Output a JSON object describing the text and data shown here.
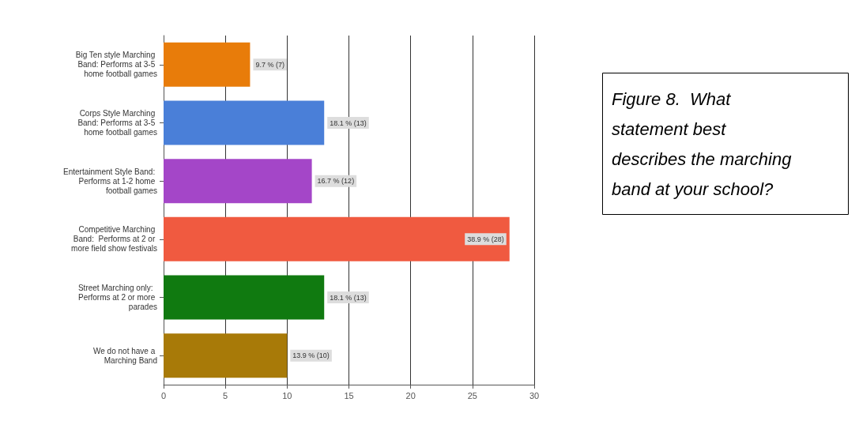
{
  "chart_data": {
    "type": "bar",
    "orientation": "horizontal",
    "title": "Figure 8.  What statement best describes the marching band at your school?",
    "categories": [
      "Big Ten style Marching Band: Performs at 3-5 home football games",
      "Corps Style Marching Band: Performs at 3-5 home football games",
      "Entertainment Style Band: Performs at 1-2 home football games",
      "Competitive Marching Band:  Performs at 2 or more field show festivals",
      "Street Marching only:  Performs at 2 or more parades",
      "We do not have a Marching Band"
    ],
    "values": [
      7,
      13,
      12,
      28,
      13,
      10
    ],
    "colors": [
      "#e87c0a",
      "#4a7fd8",
      "#a446c8",
      "#f05a40",
      "#107a10",
      "#a87a08"
    ],
    "value_labels": [
      "9.7 % (7)",
      "18.1 % (13)",
      "16.7 % (12)",
      "38.9 % (28)",
      "18.1 % (13)",
      "13.9 % (10)"
    ],
    "xlim": [
      0,
      30
    ],
    "xticks": [
      0,
      5,
      10,
      15,
      20,
      25,
      30
    ],
    "grid": "x"
  }
}
